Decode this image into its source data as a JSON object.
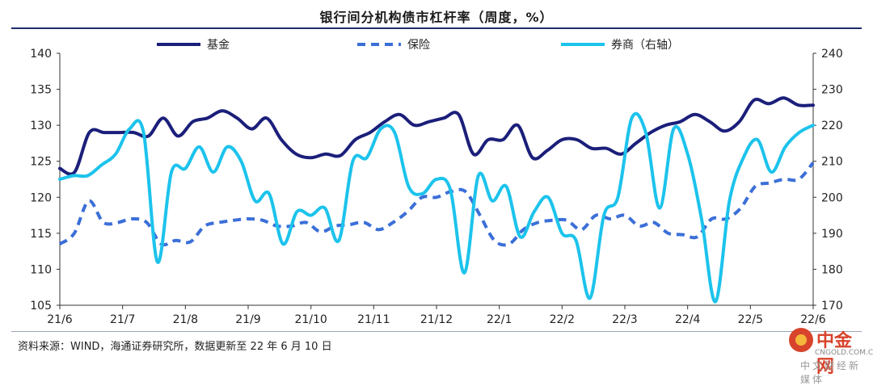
{
  "chart_data": {
    "type": "line",
    "title": "银行间分机构债市杠杆率（周度，%）",
    "x_ticks": [
      "21/6",
      "21/7",
      "21/8",
      "21/9",
      "21/10",
      "21/11",
      "21/12",
      "22/1",
      "22/2",
      "22/3",
      "22/4",
      "22/5",
      "22/6"
    ],
    "left_axis": {
      "ylim": [
        105,
        140
      ],
      "ticks": [
        105,
        110,
        115,
        120,
        125,
        130,
        135,
        140
      ]
    },
    "right_axis": {
      "ylim": [
        170,
        240
      ],
      "ticks": [
        170,
        180,
        190,
        200,
        210,
        220,
        230,
        240
      ]
    },
    "legend_position": "top",
    "grid": false,
    "series": [
      {
        "name": "基金",
        "axis": "left",
        "color": "#1b1f7a",
        "style": "solid",
        "values": [
          124.0,
          123.5,
          129.0,
          129.0,
          129.0,
          129.0,
          128.5,
          131.0,
          128.5,
          130.5,
          131.0,
          132.0,
          131.0,
          129.5,
          131.0,
          128.0,
          126.0,
          125.5,
          126.0,
          125.8,
          128.0,
          129.0,
          130.5,
          131.5,
          130.0,
          130.5,
          131.0,
          131.5,
          126.0,
          128.0,
          128.0,
          130.0,
          125.5,
          126.5,
          128.0,
          128.0,
          126.8,
          126.8,
          126.0,
          127.5,
          129.0,
          130.0,
          130.5,
          131.5,
          130.5,
          129.2,
          130.5,
          133.5,
          133.0,
          133.8,
          132.8,
          132.8
        ]
      },
      {
        "name": "保险",
        "axis": "left",
        "color": "#3b6fd8",
        "style": "dashed",
        "values": [
          113.5,
          115.0,
          119.5,
          116.5,
          116.5,
          117.0,
          116.5,
          113.5,
          114.0,
          113.8,
          116.0,
          116.5,
          116.8,
          117.0,
          116.8,
          116.0,
          116.0,
          116.5,
          115.2,
          116.0,
          116.2,
          116.5,
          115.5,
          116.5,
          118.0,
          120.0,
          120.0,
          120.8,
          120.8,
          117.5,
          114.0,
          113.5,
          115.5,
          116.5,
          116.8,
          116.8,
          115.5,
          117.5,
          117.0,
          117.5,
          116.0,
          116.5,
          115.0,
          114.8,
          114.5,
          117.0,
          117.0,
          118.5,
          121.5,
          122.0,
          122.5,
          122.5,
          124.8
        ]
      },
      {
        "name": "券商（右轴）",
        "axis": "right",
        "color": "#1cc3ec",
        "style": "solid",
        "values": [
          205,
          206,
          206,
          209,
          212,
          219,
          218,
          182,
          207,
          208,
          214,
          207,
          214,
          210,
          199,
          201,
          187,
          196,
          195,
          197,
          188,
          210,
          211,
          219,
          218,
          203,
          201,
          205,
          202,
          179,
          206,
          199,
          203,
          189,
          196,
          200,
          190,
          188,
          172,
          195,
          200,
          222,
          218,
          197,
          219,
          212,
          194,
          171,
          199,
          211,
          216,
          207,
          214,
          218,
          220
        ]
      }
    ]
  },
  "source": "资料来源：WIND，海通证券研究所，数据更新至 22 年 6 月 10 日",
  "watermark": {
    "name": "中金网",
    "domain": "CNGOLD.COM.CN",
    "slogan": "中文财经新媒体"
  }
}
